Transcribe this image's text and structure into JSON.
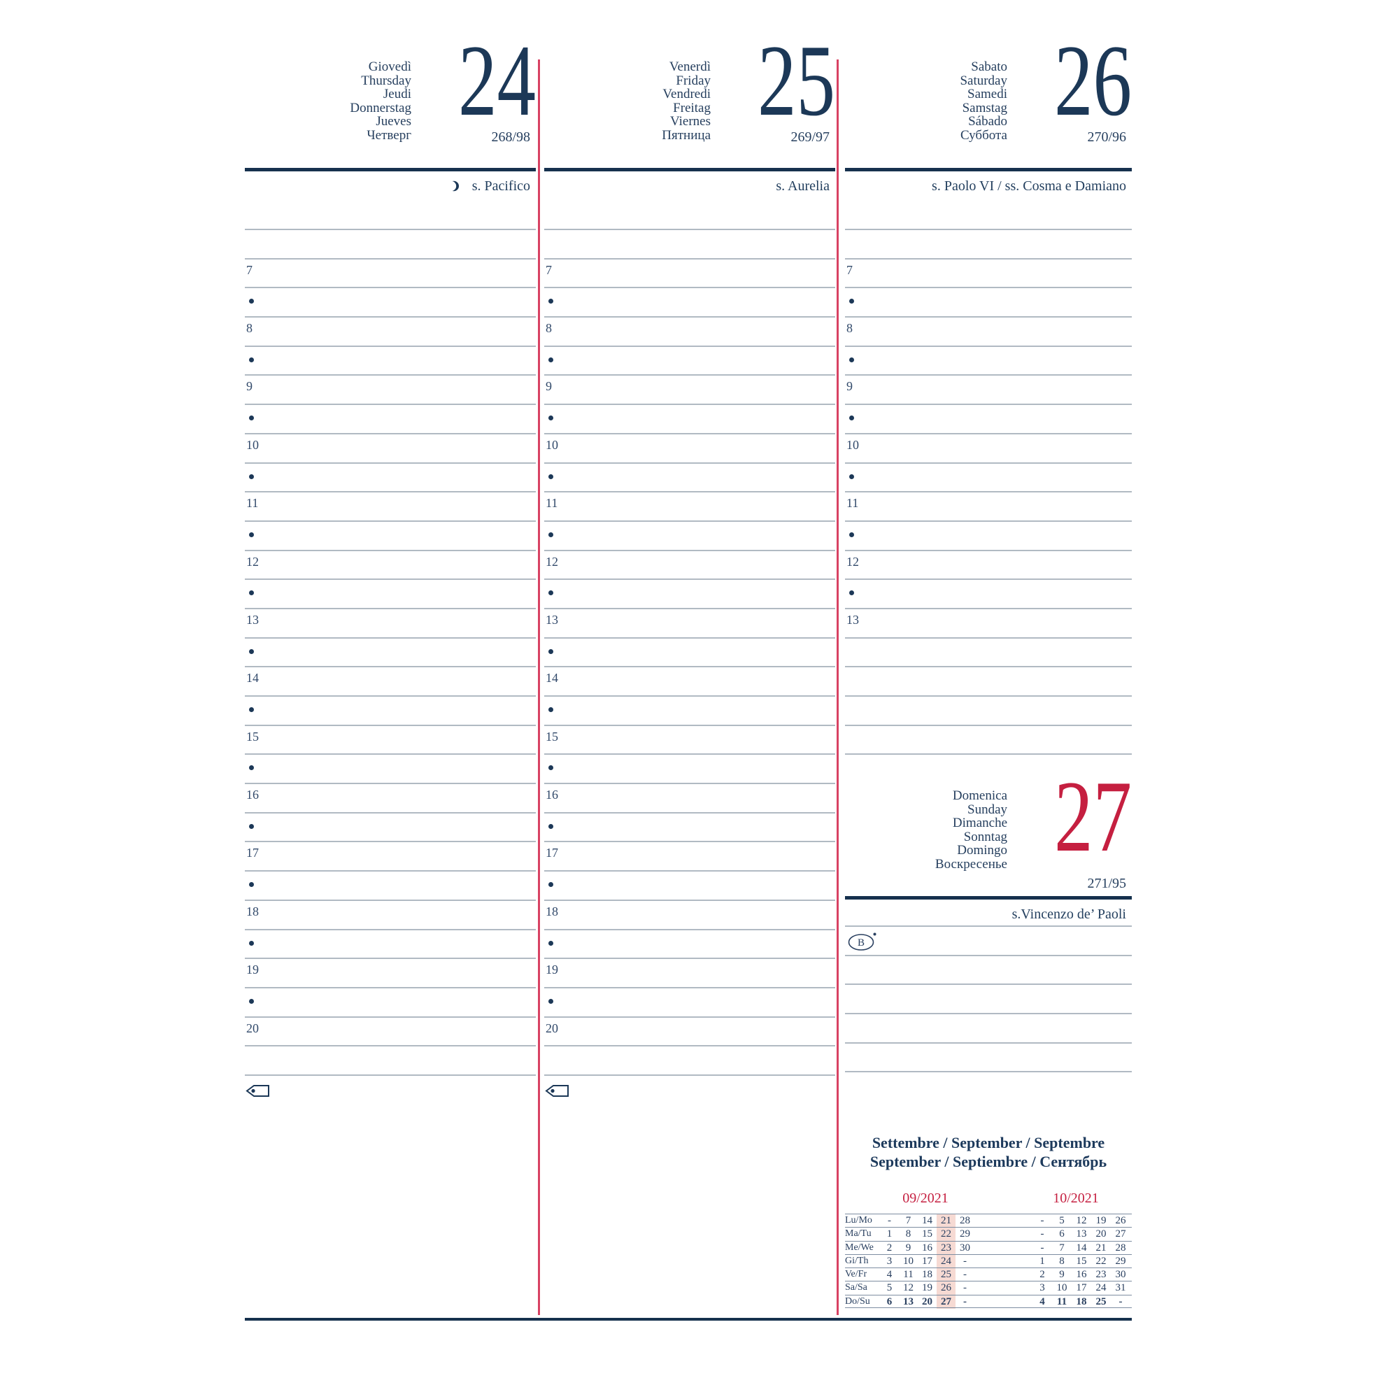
{
  "colors": {
    "navy_text": "#1c3857",
    "red_accent": "#c51f40",
    "divider_red": "#d84263",
    "ruled_line_gray": "#b1bac3",
    "highlight_pink": "#f6dad3"
  },
  "days": [
    {
      "names_text": "Giovedì\nThursday\nJeudi\nDonnerstag\nJueves\nЧетверг",
      "number": "24",
      "day_of_year": "268/98",
      "saint": "s. Pacifico",
      "moon_icon": true,
      "hours": [
        "7",
        "8",
        "9",
        "10",
        "11",
        "12",
        "13",
        "14",
        "15",
        "16",
        "17",
        "18",
        "19",
        "20"
      ],
      "leading_blank_rows": 1,
      "trailing_blank_rows": 1,
      "tag_icon": true
    },
    {
      "names_text": "Venerdì\nFriday\nVendredi\nFreitag\nViernes\nПятница",
      "number": "25",
      "day_of_year": "269/97",
      "saint": "s. Aurelia",
      "moon_icon": false,
      "hours": [
        "7",
        "8",
        "9",
        "10",
        "11",
        "12",
        "13",
        "14",
        "15",
        "16",
        "17",
        "18",
        "19",
        "20"
      ],
      "leading_blank_rows": 1,
      "trailing_blank_rows": 1,
      "tag_icon": true
    },
    {
      "names_text": "Sabato\nSaturday\nSamedi\nSamstag\nSábado\nСуббота",
      "number": "26",
      "day_of_year": "270/96",
      "saint": "s. Paolo VI / ss. Cosma e Damiano",
      "moon_icon": false,
      "hours": [
        "7",
        "8",
        "9",
        "10",
        "11",
        "12",
        "13"
      ],
      "leading_blank_rows": 1,
      "trailing_blank_rows": 4,
      "tag_icon": false
    }
  ],
  "sunday": {
    "names_text": "Domenica\nSunday\nDimanche\nSonntag\nDomingo\nВоскресенье",
    "number": "27",
    "day_of_year": "271/95",
    "saint": "s.Vincenzo de’ Paoli",
    "badge_letter": "B",
    "blank_rows_after_badge": 4
  },
  "footer": {
    "title_text": "Settembre / September / Septembre\nSeptember / Septiembre / Сентябрь",
    "day_labels": [
      "Lu/Mo",
      "Ma/Tu",
      "Me/We",
      "Gi/Th",
      "Ve/Fr",
      "Sa/Sa",
      "Do/Su"
    ],
    "calendars": [
      {
        "label": "09/2021",
        "highlight_column": 3,
        "bold_last_row": true,
        "rows": [
          [
            "-",
            "7",
            "14",
            "21",
            "28"
          ],
          [
            "1",
            "8",
            "15",
            "22",
            "29"
          ],
          [
            "2",
            "9",
            "16",
            "23",
            "30"
          ],
          [
            "3",
            "10",
            "17",
            "24",
            "-"
          ],
          [
            "4",
            "11",
            "18",
            "25",
            "-"
          ],
          [
            "5",
            "12",
            "19",
            "26",
            "-"
          ],
          [
            "6",
            "13",
            "20",
            "27",
            "-"
          ]
        ]
      },
      {
        "label": "10/2021",
        "highlight_column": null,
        "bold_last_row": true,
        "rows": [
          [
            "-",
            "5",
            "12",
            "19",
            "26"
          ],
          [
            "-",
            "6",
            "13",
            "20",
            "27"
          ],
          [
            "-",
            "7",
            "14",
            "21",
            "28"
          ],
          [
            "1",
            "8",
            "15",
            "22",
            "29"
          ],
          [
            "2",
            "9",
            "16",
            "23",
            "30"
          ],
          [
            "3",
            "10",
            "17",
            "24",
            "31"
          ],
          [
            "4",
            "11",
            "18",
            "25",
            "-"
          ]
        ]
      }
    ]
  }
}
